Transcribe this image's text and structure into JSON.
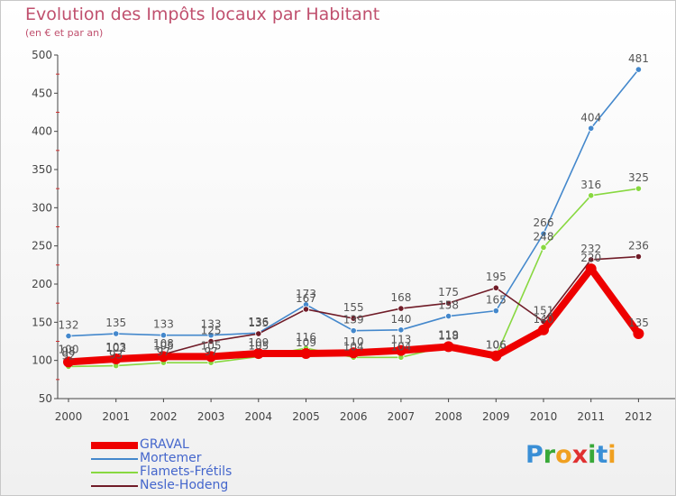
{
  "header": {
    "title": "Evolution des Impôts locaux par Habitant",
    "subtitle": "(en € et par an)"
  },
  "brand": {
    "letters": [
      "P",
      "r",
      "o",
      "x",
      "i",
      "t",
      "i"
    ],
    "colors": [
      "#3a8fd6",
      "#38a838",
      "#f0a020",
      "#e03030",
      "#38a838",
      "#3a8fd6",
      "#f0a020"
    ]
  },
  "chart_data": {
    "type": "line",
    "title": "Evolution des Impôts locaux par Habitant",
    "subtitle": "(en € et par an)",
    "xlabel": "",
    "ylabel": "",
    "x": [
      "2000",
      "2001",
      "2002",
      "2003",
      "2004",
      "2005",
      "2006",
      "2007",
      "2008",
      "2009",
      "2010",
      "2011",
      "2012"
    ],
    "ylim": [
      50,
      500
    ],
    "yticks": [
      50,
      100,
      150,
      200,
      250,
      300,
      350,
      400,
      450,
      500
    ],
    "grid": false,
    "legend_position": "bottom-left",
    "series": [
      {
        "name": "GRAVAL",
        "color": "#ee0000",
        "values": [
          98,
          102,
          105,
          105,
          109,
          109,
          110,
          113,
          118,
          106,
          140,
          220,
          135
        ],
        "labels": [
          "98",
          "102",
          "105",
          "105",
          "109",
          "109",
          "110",
          "113",
          "118",
          "106",
          "140",
          "220",
          "135"
        ]
      },
      {
        "name": "Mortemer",
        "color": "#4488cc",
        "values": [
          132,
          135,
          133,
          133,
          136,
          173,
          139,
          140,
          158,
          165,
          266,
          404,
          481
        ],
        "labels": [
          "132",
          "135",
          "133",
          "133",
          "136",
          "173",
          "139",
          "140",
          "158",
          "165",
          "266",
          "404",
          "481"
        ]
      },
      {
        "name": "Flamets-Frétils",
        "color": "#88d840",
        "values": [
          92,
          93,
          97,
          97,
          105,
          116,
          104,
          104,
          119,
          106,
          248,
          316,
          325
        ],
        "labels": [
          "92",
          "93",
          "97",
          "97",
          "105",
          "116",
          "104",
          "104",
          "119",
          "106",
          "248",
          "316",
          "325"
        ]
      },
      {
        "name": "Nesle-Hodeng",
        "color": "#701c28",
        "values": [
          100,
          103,
          108,
          125,
          135,
          167,
          155,
          168,
          175,
          195,
          151,
          232,
          236
        ],
        "labels": [
          "100",
          "103",
          "108",
          "125",
          "135",
          "167",
          "155",
          "168",
          "175",
          "195",
          "151",
          "232",
          "236"
        ]
      }
    ]
  }
}
